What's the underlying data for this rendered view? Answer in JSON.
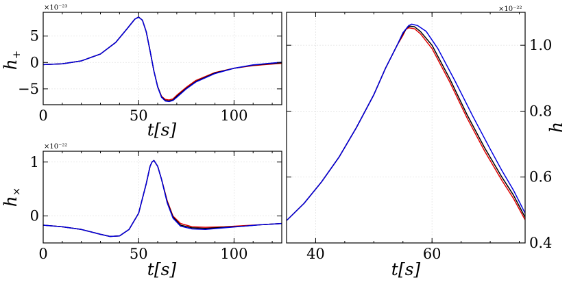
{
  "chart_data": [
    {
      "id": "hplus",
      "type": "line",
      "xlabel": "t[s]",
      "ylabel": "h+",
      "offset_text": "×10⁻²³",
      "xlim": [
        0,
        125
      ],
      "ylim": [
        -8,
        9.5
      ],
      "xticks": [
        0,
        50,
        100
      ],
      "yticks": [
        -5,
        0,
        5
      ],
      "ytick_labels": [
        "−5",
        "0",
        "5"
      ],
      "grid": true,
      "series": [
        {
          "color": "#e00000",
          "points": [
            [
              0,
              -0.4
            ],
            [
              10,
              -0.25
            ],
            [
              20,
              0.3
            ],
            [
              30,
              1.6
            ],
            [
              38,
              3.8
            ],
            [
              44,
              6.4
            ],
            [
              48,
              8.2
            ],
            [
              50,
              8.6
            ],
            [
              52,
              8.0
            ],
            [
              54,
              5.8
            ],
            [
              56,
              2.2
            ],
            [
              58,
              -1.6
            ],
            [
              60,
              -4.6
            ],
            [
              62,
              -6.4
            ],
            [
              64,
              -7.0
            ],
            [
              66,
              -7.1
            ],
            [
              68,
              -6.9
            ],
            [
              70,
              -6.2
            ],
            [
              75,
              -4.7
            ],
            [
              80,
              -3.4
            ],
            [
              90,
              -1.9
            ],
            [
              100,
              -1.1
            ],
            [
              110,
              -0.6
            ],
            [
              125,
              -0.15
            ]
          ]
        },
        {
          "color": "#000000",
          "points": [
            [
              0,
              -0.4
            ],
            [
              10,
              -0.25
            ],
            [
              20,
              0.3
            ],
            [
              30,
              1.6
            ],
            [
              38,
              3.8
            ],
            [
              44,
              6.4
            ],
            [
              48,
              8.2
            ],
            [
              50,
              8.6
            ],
            [
              52,
              8.0
            ],
            [
              54,
              5.8
            ],
            [
              56,
              2.2
            ],
            [
              58,
              -1.6
            ],
            [
              60,
              -4.6
            ],
            [
              62,
              -6.5
            ],
            [
              64,
              -7.2
            ],
            [
              66,
              -7.3
            ],
            [
              68,
              -7.1
            ],
            [
              70,
              -6.4
            ],
            [
              75,
              -4.9
            ],
            [
              80,
              -3.6
            ],
            [
              90,
              -2.0
            ],
            [
              100,
              -1.1
            ],
            [
              110,
              -0.5
            ],
            [
              125,
              -0.05
            ]
          ]
        },
        {
          "color": "#0000e0",
          "points": [
            [
              0,
              -0.4
            ],
            [
              10,
              -0.25
            ],
            [
              20,
              0.3
            ],
            [
              30,
              1.6
            ],
            [
              38,
              3.8
            ],
            [
              44,
              6.4
            ],
            [
              48,
              8.2
            ],
            [
              50,
              8.6
            ],
            [
              52,
              8.0
            ],
            [
              54,
              5.8
            ],
            [
              56,
              2.2
            ],
            [
              58,
              -1.6
            ],
            [
              60,
              -4.7
            ],
            [
              62,
              -6.6
            ],
            [
              64,
              -7.3
            ],
            [
              66,
              -7.4
            ],
            [
              68,
              -7.2
            ],
            [
              70,
              -6.6
            ],
            [
              75,
              -5.0
            ],
            [
              80,
              -3.7
            ],
            [
              90,
              -2.1
            ],
            [
              100,
              -1.1
            ],
            [
              110,
              -0.45
            ],
            [
              125,
              0.05
            ]
          ]
        }
      ]
    },
    {
      "id": "hcross",
      "type": "line",
      "xlabel": "t[s]",
      "ylabel": "h×",
      "offset_text": "×10⁻²²",
      "xlim": [
        0,
        125
      ],
      "ylim": [
        -0.5,
        1.2
      ],
      "xticks": [
        0,
        50,
        100
      ],
      "yticks": [
        0,
        1
      ],
      "ytick_labels": [
        "0",
        "1"
      ],
      "grid": true,
      "series": [
        {
          "color": "#e00000",
          "points": [
            [
              0,
              -0.17
            ],
            [
              10,
              -0.2
            ],
            [
              20,
              -0.25
            ],
            [
              30,
              -0.34
            ],
            [
              35,
              -0.38
            ],
            [
              40,
              -0.37
            ],
            [
              45,
              -0.25
            ],
            [
              50,
              0.05
            ],
            [
              54,
              0.6
            ],
            [
              56,
              0.92
            ],
            [
              57,
              1.0
            ],
            [
              58,
              1.03
            ],
            [
              60,
              0.92
            ],
            [
              62,
              0.68
            ],
            [
              65,
              0.28
            ],
            [
              68,
              0.0
            ],
            [
              72,
              -0.14
            ],
            [
              78,
              -0.2
            ],
            [
              85,
              -0.21
            ],
            [
              95,
              -0.2
            ],
            [
              105,
              -0.18
            ],
            [
              115,
              -0.16
            ],
            [
              125,
              -0.14
            ]
          ]
        },
        {
          "color": "#000000",
          "points": [
            [
              0,
              -0.17
            ],
            [
              10,
              -0.2
            ],
            [
              20,
              -0.25
            ],
            [
              30,
              -0.34
            ],
            [
              35,
              -0.38
            ],
            [
              40,
              -0.37
            ],
            [
              45,
              -0.25
            ],
            [
              50,
              0.05
            ],
            [
              54,
              0.6
            ],
            [
              56,
              0.92
            ],
            [
              57,
              1.0
            ],
            [
              58,
              1.03
            ],
            [
              60,
              0.92
            ],
            [
              62,
              0.68
            ],
            [
              65,
              0.26
            ],
            [
              68,
              -0.02
            ],
            [
              72,
              -0.17
            ],
            [
              78,
              -0.22
            ],
            [
              85,
              -0.23
            ],
            [
              95,
              -0.21
            ],
            [
              105,
              -0.19
            ],
            [
              115,
              -0.16
            ],
            [
              125,
              -0.14
            ]
          ]
        },
        {
          "color": "#0000e0",
          "points": [
            [
              0,
              -0.17
            ],
            [
              10,
              -0.2
            ],
            [
              20,
              -0.25
            ],
            [
              30,
              -0.34
            ],
            [
              35,
              -0.38
            ],
            [
              40,
              -0.37
            ],
            [
              45,
              -0.25
            ],
            [
              50,
              0.05
            ],
            [
              54,
              0.6
            ],
            [
              56,
              0.92
            ],
            [
              57,
              1.0
            ],
            [
              58,
              1.03
            ],
            [
              60,
              0.92
            ],
            [
              62,
              0.68
            ],
            [
              65,
              0.24
            ],
            [
              68,
              -0.04
            ],
            [
              72,
              -0.19
            ],
            [
              78,
              -0.24
            ],
            [
              85,
              -0.25
            ],
            [
              95,
              -0.22
            ],
            [
              105,
              -0.19
            ],
            [
              115,
              -0.16
            ],
            [
              125,
              -0.14
            ]
          ]
        }
      ]
    },
    {
      "id": "h",
      "type": "line",
      "xlabel": "t[s]",
      "ylabel": "h",
      "offset_text": "×10⁻²²",
      "xlim": [
        35,
        76
      ],
      "ylim": [
        0.4,
        1.1
      ],
      "xticks": [
        40,
        60
      ],
      "yticks": [
        0.4,
        0.6,
        0.8,
        1.0
      ],
      "ytick_labels": [
        "0.4",
        "0.6",
        "0.8",
        "1.0"
      ],
      "y_axis_side": "right",
      "grid": true,
      "series": [
        {
          "color": "#e00000",
          "points": [
            [
              35,
              0.468
            ],
            [
              38,
              0.52
            ],
            [
              41,
              0.585
            ],
            [
              44,
              0.66
            ],
            [
              47,
              0.75
            ],
            [
              50,
              0.85
            ],
            [
              52,
              0.93
            ],
            [
              54,
              1.0
            ],
            [
              55,
              1.03
            ],
            [
              55.5,
              1.048
            ],
            [
              56,
              1.053
            ],
            [
              57,
              1.05
            ],
            [
              58,
              1.035
            ],
            [
              60,
              0.99
            ],
            [
              63,
              0.89
            ],
            [
              66,
              0.78
            ],
            [
              69,
              0.68
            ],
            [
              72,
              0.59
            ],
            [
              74,
              0.535
            ],
            [
              76,
              0.47
            ]
          ]
        },
        {
          "color": "#000000",
          "points": [
            [
              35,
              0.468
            ],
            [
              38,
              0.52
            ],
            [
              41,
              0.585
            ],
            [
              44,
              0.66
            ],
            [
              47,
              0.75
            ],
            [
              50,
              0.85
            ],
            [
              52,
              0.93
            ],
            [
              54,
              1.0
            ],
            [
              55,
              1.035
            ],
            [
              55.7,
              1.053
            ],
            [
              56.2,
              1.058
            ],
            [
              57,
              1.056
            ],
            [
              58,
              1.042
            ],
            [
              60,
              1.0
            ],
            [
              63,
              0.9
            ],
            [
              66,
              0.79
            ],
            [
              69,
              0.69
            ],
            [
              72,
              0.6
            ],
            [
              74,
              0.545
            ],
            [
              76,
              0.478
            ]
          ]
        },
        {
          "color": "#0000e0",
          "points": [
            [
              35,
              0.468
            ],
            [
              38,
              0.52
            ],
            [
              41,
              0.585
            ],
            [
              44,
              0.66
            ],
            [
              47,
              0.75
            ],
            [
              50,
              0.85
            ],
            [
              52,
              0.93
            ],
            [
              54,
              1.0
            ],
            [
              55,
              1.038
            ],
            [
              56,
              1.06
            ],
            [
              56.5,
              1.064
            ],
            [
              57.5,
              1.06
            ],
            [
              59,
              1.042
            ],
            [
              61,
              0.99
            ],
            [
              64,
              0.89
            ],
            [
              67,
              0.785
            ],
            [
              70,
              0.685
            ],
            [
              72,
              0.62
            ],
            [
              74,
              0.56
            ],
            [
              76,
              0.49
            ]
          ]
        }
      ]
    }
  ]
}
